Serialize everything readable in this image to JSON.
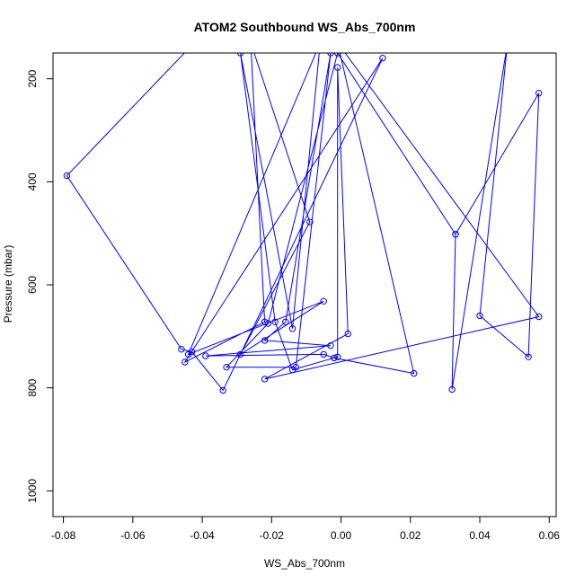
{
  "chart_data": {
    "type": "line",
    "title": "ATOM2 Southbound WS_Abs_700nm",
    "xlabel": "WS_Abs_700nm",
    "ylabel": "Pressure (mbar)",
    "xlim": [
      -0.083,
      0.062
    ],
    "ylim": [
      1050,
      150
    ],
    "y_inverted": true,
    "x_ticks": [
      -0.08,
      -0.06,
      -0.04,
      -0.02,
      0.0,
      0.02,
      0.04,
      0.06
    ],
    "x_tick_labels": [
      "-0.08",
      "-0.06",
      "-0.04",
      "-0.02",
      "0.00",
      "0.02",
      "0.04",
      "0.06"
    ],
    "y_ticks": [
      200,
      400,
      600,
      800,
      1000
    ],
    "y_tick_labels": [
      "200",
      "400",
      "600",
      "800",
      "1000"
    ],
    "grid": false,
    "color": "#0000ff",
    "series": [
      {
        "points": [
          [
            -0.038,
            100
          ],
          [
            -0.079,
            388
          ],
          [
            -0.046,
            725
          ],
          [
            -0.043,
            730
          ],
          [
            -0.034,
            805
          ],
          [
            0.012,
            160
          ],
          [
            -0.045,
            750
          ],
          [
            -0.022,
            672
          ],
          [
            -0.026,
            130
          ],
          [
            -0.009,
            478
          ],
          [
            -0.029,
            735
          ],
          [
            -0.005,
            632
          ],
          [
            -0.044,
            735
          ],
          [
            -0.006,
            130
          ],
          [
            -0.014,
            685
          ],
          [
            -0.029,
            150
          ],
          [
            -0.019,
            672
          ],
          [
            -0.014,
            765
          ],
          [
            -0.001,
            740
          ],
          [
            -0.001,
            178
          ],
          [
            0.002,
            695
          ],
          [
            -0.022,
            783
          ],
          [
            0.057,
            662
          ],
          [
            -0.001,
            130
          ],
          [
            0.021,
            772
          ],
          [
            -0.002,
            742
          ],
          [
            -0.005,
            735
          ],
          [
            -0.039,
            738
          ],
          [
            -0.003,
            718
          ],
          [
            -0.022,
            708
          ],
          [
            -0.016,
            672
          ],
          [
            -0.003,
            150
          ],
          [
            -0.013,
            760
          ],
          [
            -0.033,
            760
          ],
          [
            -0.021,
            675
          ],
          [
            -0.001,
            150
          ],
          [
            0.033,
            502
          ],
          [
            0.057,
            228
          ],
          [
            0.054,
            740
          ],
          [
            0.04,
            660
          ],
          [
            0.048,
            130
          ],
          [
            0.032,
            803
          ],
          [
            0.033,
            502
          ]
        ]
      }
    ]
  }
}
